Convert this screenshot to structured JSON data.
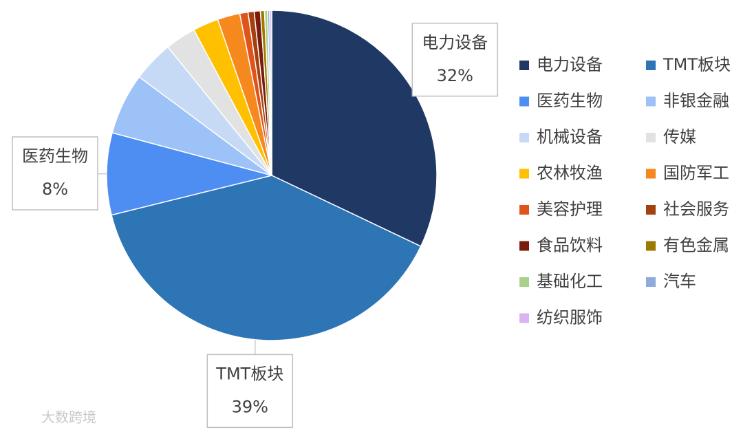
{
  "chart_data": {
    "type": "pie",
    "categories": [
      "电力设备",
      "TMT板块",
      "医药生物",
      "非银金融",
      "机械设备",
      "传媒",
      "农林牧渔",
      "国防军工",
      "美容护理",
      "社会服务",
      "食品饮料",
      "有色金属",
      "基础化工",
      "汽车",
      "纺织服饰"
    ],
    "values": [
      32,
      39,
      8,
      6,
      4,
      3,
      2.5,
      2.2,
      0.8,
      0.6,
      0.6,
      0.4,
      0.3,
      0.2,
      0.2
    ],
    "value_labels": [
      "32%",
      "39%",
      "8%",
      null,
      null,
      null,
      null,
      null,
      null,
      null,
      null,
      null,
      null,
      null,
      null
    ],
    "colors": [
      "#203864",
      "#2e75b6",
      "#4e8ef2",
      "#9cc2f7",
      "#c6daf6",
      "#e2e2e2",
      "#ffc000",
      "#f5891e",
      "#e0541c",
      "#a3420e",
      "#7a1b0b",
      "#9c7a00",
      "#a9d18e",
      "#8faadc",
      "#dab4f0"
    ],
    "legend": "right"
  },
  "watermark": "大数跨境"
}
